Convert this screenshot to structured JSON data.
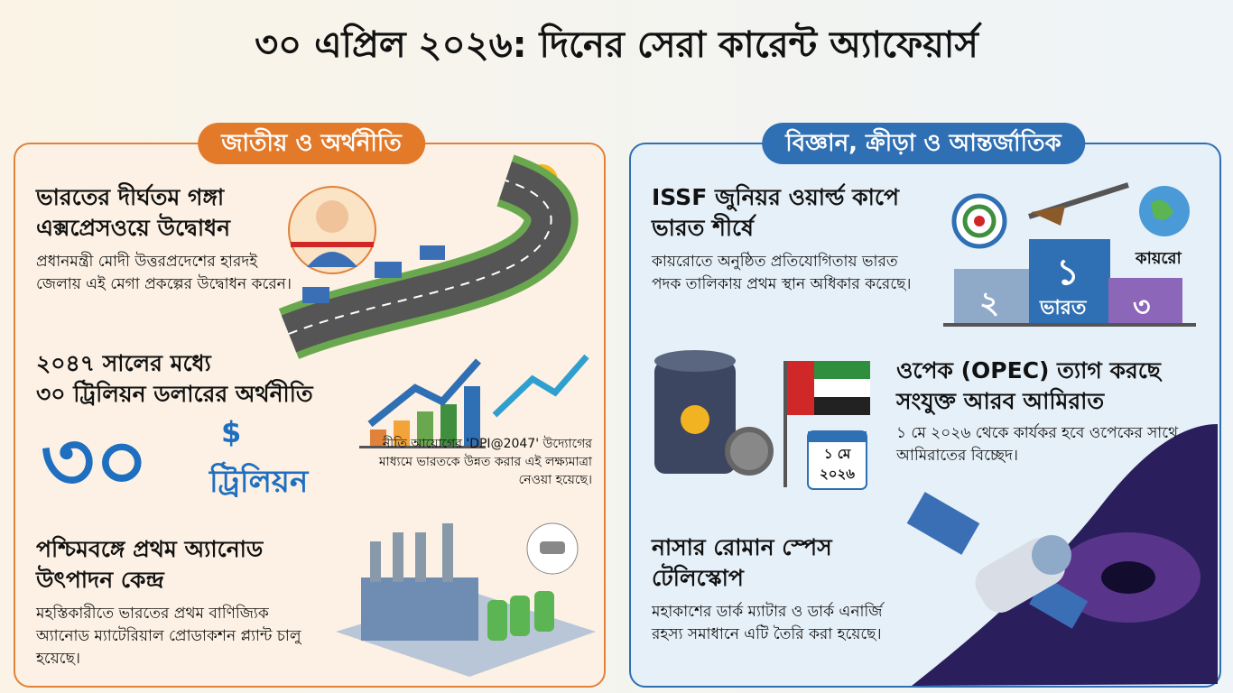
{
  "title": "৩০ এপ্রিল ২০২৬: দিনের সেরা কারেন্ট অ্যাফেয়ার্স",
  "left_panel": {
    "header": "জাতীয় ও অর্থনীতি",
    "items": [
      {
        "heading": [
          "ভারতের দীর্ঘতম গঙ্গা",
          "এক্সপ্রেসওয়ে উদ্বোধন"
        ],
        "body": "প্রধানমন্ত্রী মোদী উত্তরপ্রদেশের হারদই জেলায় এই মেগা প্রকল্পের উদ্বোধন করেন।"
      },
      {
        "heading": [
          "২০৪৭ সালের মধ্যে",
          "৩০ ট্রিলিয়ন ডলারের অর্থনীতি"
        ],
        "big_number": "৩০",
        "currency": "$",
        "unit": "ট্রিলিয়ন",
        "body": "নীতি আয়োগের 'DPI@2047' উদ্যোগের মাধ্যমে ভারতকে উন্নত করার এই লক্ষ্যমাত্রা নেওয়া হয়েছে।"
      },
      {
        "heading": [
          "পশ্চিমবঙ্গে প্রথম অ্যানোড",
          "উৎপাদন কেন্দ্র"
        ],
        "body": "মহস্তিকারীতে ভারতের প্রথম বাণিজ্যিক অ্যানোড ম্যাটেরিয়াল প্রোডাকশন প্ল্যান্ট চালু হয়েছে।"
      }
    ]
  },
  "right_panel": {
    "header": "বিজ্ঞান, ক্রীড়া ও আন্তর্জাতিক",
    "items": [
      {
        "heading": [
          "ISSF জুনিয়র ওয়ার্ল্ড কাপে",
          "ভারত শীর্ষে"
        ],
        "body": "কায়রোতে অনুষ্ঠিত প্রতিযোগিতায় ভারত পদক তালিকায় প্রথম স্থান অধিকার করেছে।",
        "podium": {
          "second": "২",
          "first": "১",
          "first_label": "ভারত",
          "third": "৩"
        },
        "place": "কায়রো"
      },
      {
        "heading": [
          "ওপেক (OPEC) ত্যাগ করছে",
          "সংযুক্ত আরব আমিরাত"
        ],
        "body": "১ মে ২০২৬ থেকে কার্যকর হবে ওপেকের সাথে আমিরাতের বিচ্ছেদ।",
        "calendar": [
          "১ মে",
          "২০২৬"
        ]
      },
      {
        "heading": [
          "নাসার রোমান স্পেস",
          "টেলিস্কোপ"
        ],
        "body": "মহাকাশের ডার্ক ম্যাটার ও ডার্ক এনার্জি রহস্য সমাধানে এটি তৈরি করা হয়েছে।"
      }
    ]
  }
}
